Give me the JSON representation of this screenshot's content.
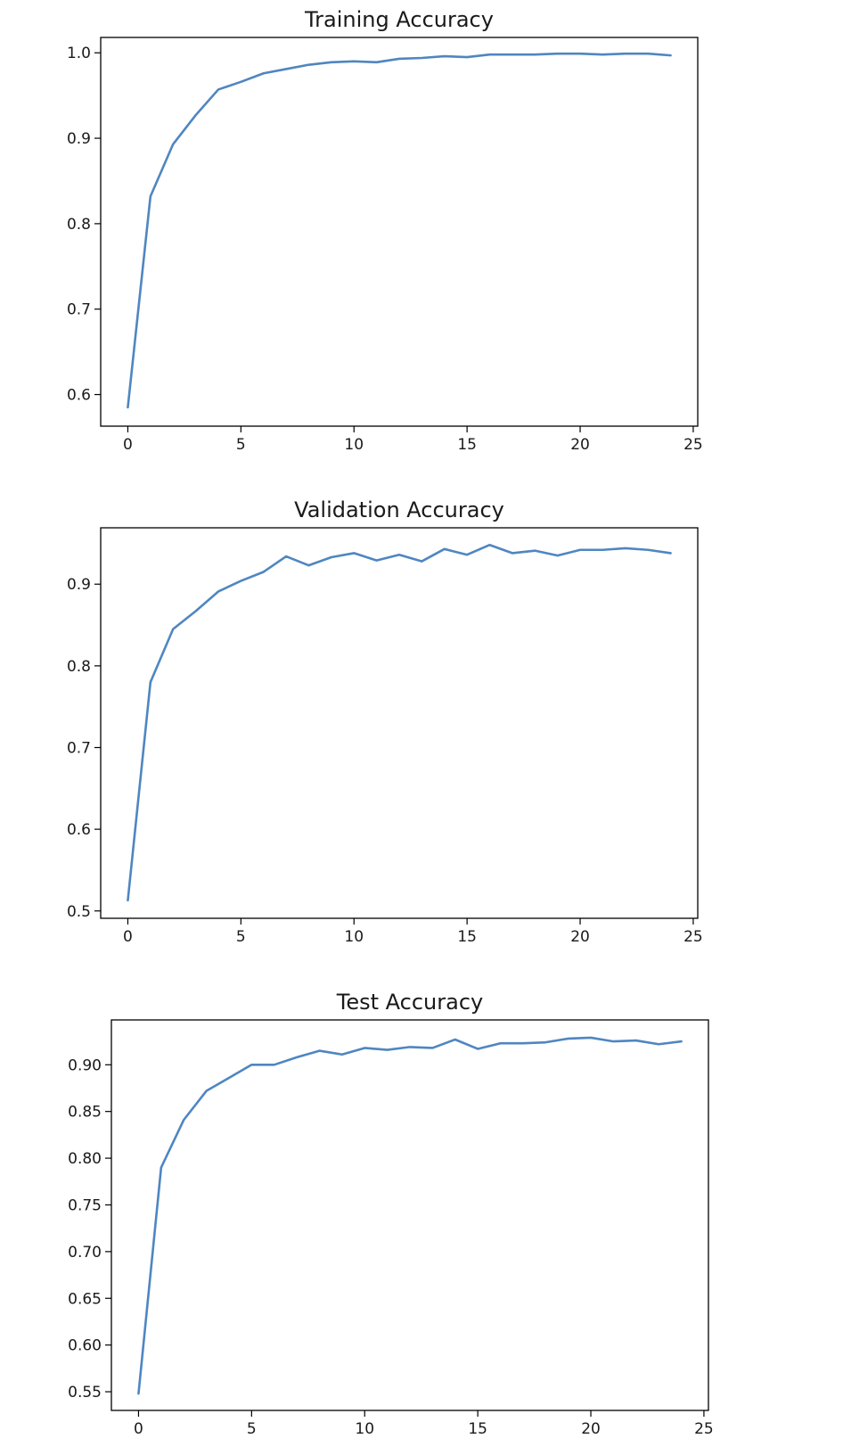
{
  "figure": {
    "line_color": "#4f86c1",
    "axis_color": "#000000",
    "background": "#ffffff"
  },
  "chart_data": [
    {
      "type": "line",
      "title": "Training Accuracy",
      "xlabel": "",
      "ylabel": "",
      "xlim": [
        -1.2,
        25.2
      ],
      "ylim": [
        0.563,
        1.018
      ],
      "xticks": [
        0,
        5,
        10,
        15,
        20,
        25
      ],
      "xtick_labels": [
        "0",
        "5",
        "10",
        "15",
        "20",
        "25"
      ],
      "yticks": [
        0.6,
        0.7,
        0.8,
        0.9,
        1.0
      ],
      "ytick_labels": [
        "0.6",
        "0.7",
        "0.8",
        "0.9",
        "1.0"
      ],
      "grid": false,
      "series": [
        {
          "x": [
            0,
            1,
            2,
            3,
            4,
            5,
            6,
            7,
            8,
            9,
            10,
            11,
            12,
            13,
            14,
            15,
            16,
            17,
            18,
            19,
            20,
            21,
            22,
            23,
            24
          ],
          "y": [
            0.585,
            0.832,
            0.893,
            0.927,
            0.957,
            0.966,
            0.976,
            0.981,
            0.986,
            0.989,
            0.99,
            0.989,
            0.993,
            0.994,
            0.996,
            0.995,
            0.998,
            0.998,
            0.998,
            0.999,
            0.999,
            0.998,
            0.999,
            0.999,
            0.997
          ]
        }
      ]
    },
    {
      "type": "line",
      "title": "Validation Accuracy",
      "xlabel": "",
      "ylabel": "",
      "xlim": [
        -1.2,
        25.2
      ],
      "ylim": [
        0.491,
        0.969
      ],
      "xticks": [
        0,
        5,
        10,
        15,
        20,
        25
      ],
      "xtick_labels": [
        "0",
        "5",
        "10",
        "15",
        "20",
        "25"
      ],
      "yticks": [
        0.5,
        0.6,
        0.7,
        0.8,
        0.9
      ],
      "ytick_labels": [
        "0.5",
        "0.6",
        "0.7",
        "0.8",
        "0.9"
      ],
      "grid": false,
      "series": [
        {
          "x": [
            0,
            1,
            2,
            3,
            4,
            5,
            6,
            7,
            8,
            9,
            10,
            11,
            12,
            13,
            14,
            15,
            16,
            17,
            18,
            19,
            20,
            21,
            22,
            23,
            24
          ],
          "y": [
            0.513,
            0.78,
            0.845,
            0.867,
            0.891,
            0.904,
            0.915,
            0.934,
            0.923,
            0.933,
            0.938,
            0.929,
            0.936,
            0.928,
            0.943,
            0.936,
            0.948,
            0.938,
            0.941,
            0.935,
            0.942,
            0.942,
            0.944,
            0.942,
            0.938
          ]
        }
      ]
    },
    {
      "type": "line",
      "title": "Test Accuracy",
      "xlabel": "",
      "ylabel": "",
      "xlim": [
        -1.2,
        25.2
      ],
      "ylim": [
        0.53,
        0.948
      ],
      "xticks": [
        0,
        5,
        10,
        15,
        20,
        25
      ],
      "xtick_labels": [
        "0",
        "5",
        "10",
        "15",
        "20",
        "25"
      ],
      "yticks": [
        0.55,
        0.6,
        0.65,
        0.7,
        0.75,
        0.8,
        0.85,
        0.9
      ],
      "ytick_labels": [
        "0.55",
        "0.60",
        "0.65",
        "0.70",
        "0.75",
        "0.80",
        "0.85",
        "0.90"
      ],
      "grid": false,
      "series": [
        {
          "x": [
            0,
            1,
            2,
            3,
            4,
            5,
            6,
            7,
            8,
            9,
            10,
            11,
            12,
            13,
            14,
            15,
            16,
            17,
            18,
            19,
            20,
            21,
            22,
            23,
            24
          ],
          "y": [
            0.548,
            0.79,
            0.841,
            0.872,
            0.886,
            0.9,
            0.9,
            0.908,
            0.915,
            0.911,
            0.918,
            0.916,
            0.919,
            0.918,
            0.927,
            0.917,
            0.923,
            0.923,
            0.924,
            0.928,
            0.929,
            0.925,
            0.926,
            0.922,
            0.925
          ]
        }
      ]
    }
  ]
}
